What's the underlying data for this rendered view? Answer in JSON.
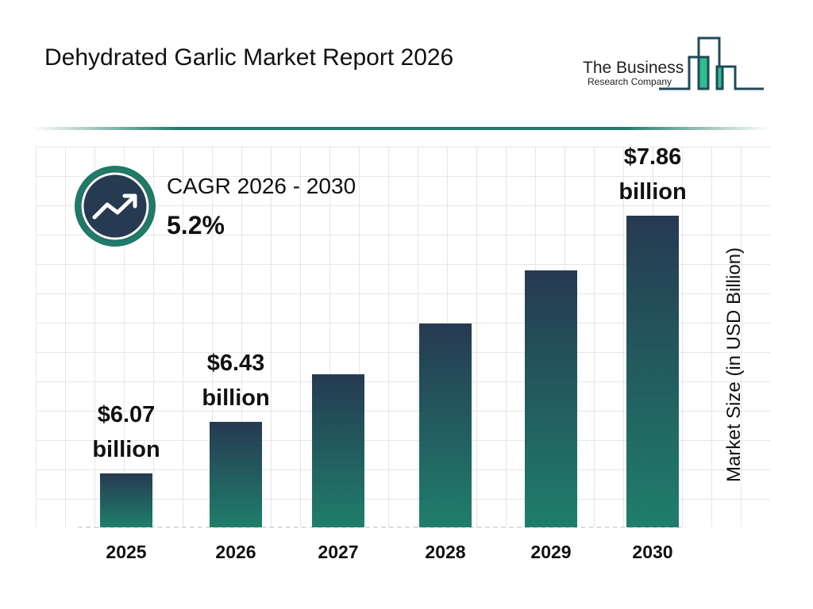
{
  "header": {
    "title": "Dehydrated Garlic Market Report 2026"
  },
  "logo": {
    "line1": "The Business",
    "line2": "Research Company"
  },
  "cagr": {
    "label": "CAGR 2026 - 2030",
    "value": "5.2%",
    "icon": "trending-up-icon"
  },
  "colors": {
    "bar_top": "#263a52",
    "bar_bottom": "#1f7e6b",
    "accent": "#1f7a68"
  },
  "chart_data": {
    "type": "bar",
    "title": "Dehydrated Garlic Market Report 2026",
    "ylabel": "Market Size (in USD Billion)",
    "xlabel": "",
    "categories": [
      "2025",
      "2026",
      "2027",
      "2028",
      "2029",
      "2030"
    ],
    "values": [
      6.07,
      6.43,
      6.76,
      7.11,
      7.48,
      7.86
    ],
    "data_labels": [
      {
        "index": 0,
        "value": "$6.07",
        "unit": "billion"
      },
      {
        "index": 1,
        "value": "$6.43",
        "unit": "billion"
      },
      {
        "index": 5,
        "value": "$7.86",
        "unit": "billion"
      }
    ],
    "ylim": [
      5.7,
      8.0
    ],
    "grid": true,
    "legend": "none"
  }
}
